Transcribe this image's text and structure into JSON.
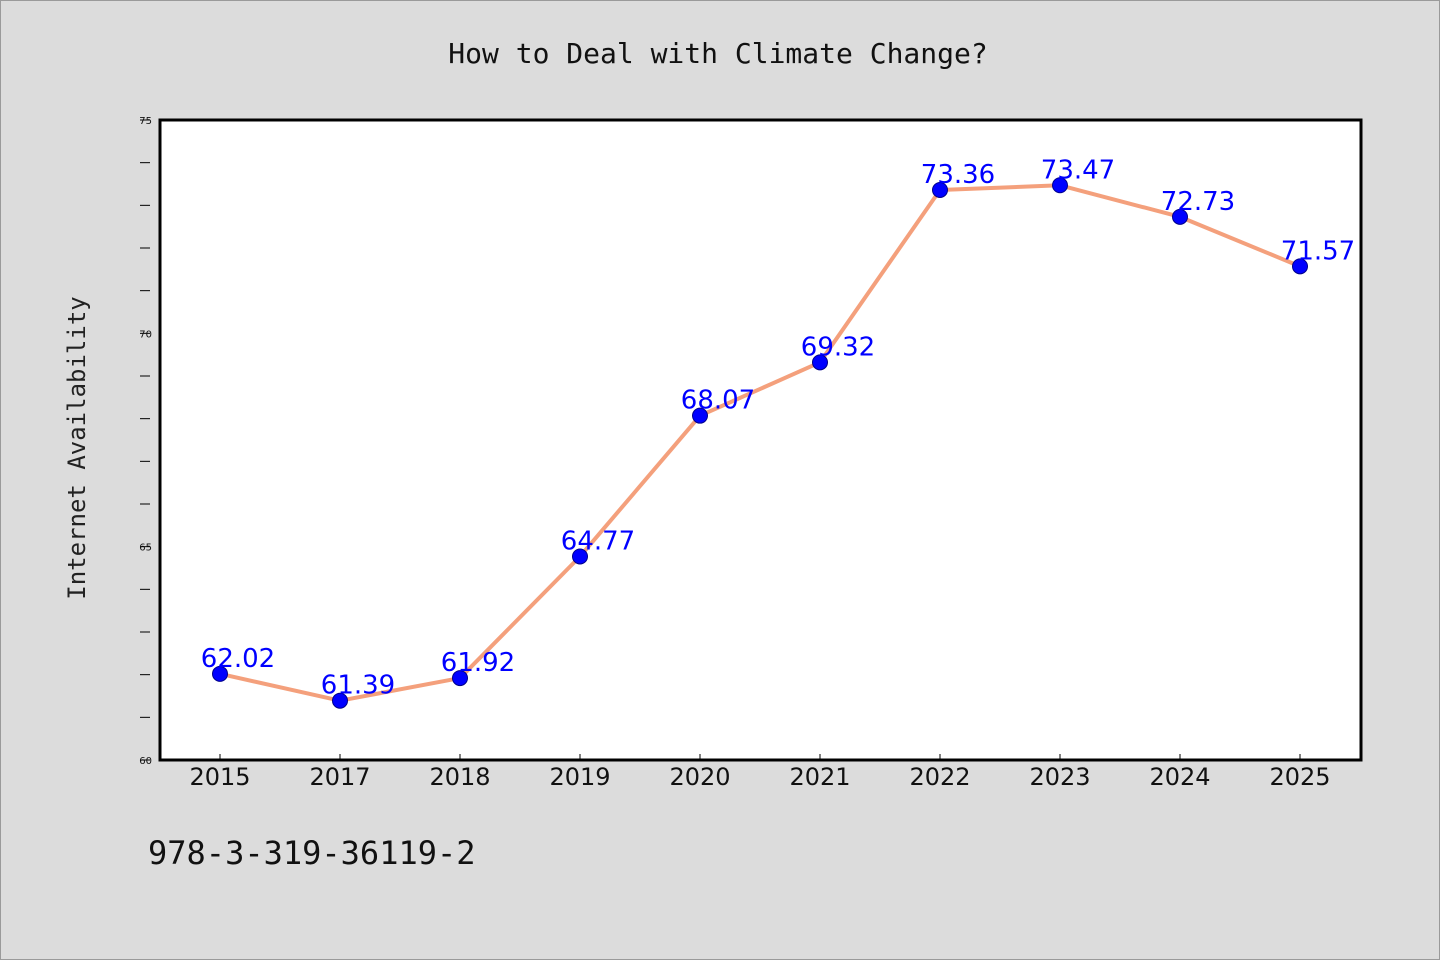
{
  "chart_data": {
    "type": "line",
    "title": "How to Deal with Climate Change?",
    "xlabel": "",
    "ylabel": "Internet Availability",
    "categories": [
      "2015",
      "2017",
      "2018",
      "2019",
      "2020",
      "2021",
      "2022",
      "2023",
      "2024",
      "2025"
    ],
    "series": [
      {
        "values": [
          62.02,
          61.39,
          61.92,
          64.77,
          68.07,
          69.32,
          73.36,
          73.47,
          72.73,
          71.57
        ]
      }
    ],
    "data_labels": [
      "62.02",
      "61.39",
      "61.92",
      "64.77",
      "68.07",
      "69.32",
      "73.36",
      "73.47",
      "72.73",
      "71.57"
    ],
    "ylim": [
      60,
      75
    ],
    "yticks": [
      "60",
      "65",
      "70",
      "75"
    ],
    "grid": false,
    "legend": "none",
    "colors": {
      "line": "#f4a07c",
      "marker": "#0000ff",
      "label": "#0000ff",
      "background": "#dcdcdc",
      "plot_background": "#ffffff"
    }
  },
  "footer": {
    "text": "978-3-319-36119-2"
  }
}
